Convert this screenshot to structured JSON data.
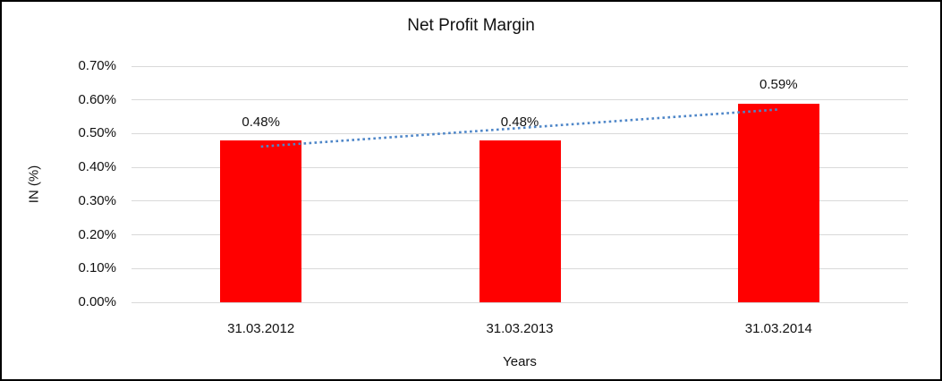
{
  "chart_data": {
    "type": "bar",
    "title": "Net Profit Margin",
    "xlabel": "Years",
    "ylabel": "IN (%)",
    "categories": [
      "31.03.2012",
      "31.03.2013",
      "31.03.2014"
    ],
    "values": [
      0.48,
      0.48,
      0.59
    ],
    "data_labels": [
      "0.48%",
      "0.48%",
      "0.59%"
    ],
    "y_ticks": [
      "0.00%",
      "0.10%",
      "0.20%",
      "0.30%",
      "0.40%",
      "0.50%",
      "0.60%",
      "0.70%"
    ],
    "ylim": [
      0,
      0.7
    ],
    "y_tick_step": 0.1,
    "grid": true,
    "legend": "none",
    "bar_color": "#FF0000",
    "gridline_color": "#D9D9D9",
    "trendline": {
      "style": "dotted",
      "color": "#4E86C8",
      "fit": "linear"
    }
  }
}
